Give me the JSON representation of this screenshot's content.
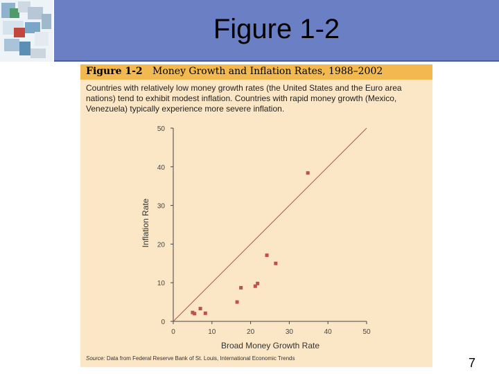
{
  "slide": {
    "title": "Figure 1-2",
    "page_number": "7"
  },
  "figure": {
    "label": "Figure 1-2",
    "heading": "Money Growth and Inflation Rates, 1988–2002",
    "caption": "Countries with relatively low money growth rates (the United States and the Euro area nations) tend to exhibit modest inflation. Countries with rapid money growth (Mexico, Venezuela) typically experience more severe inflation.",
    "source_label": "Source:",
    "source_text": "Data from Federal Reserve Bank of St. Louis, International Economic Trends",
    "panel_color": "#fbe6c6",
    "header_color": "#f1b94f",
    "mark_color": "#c0504d"
  },
  "chart_data": {
    "type": "scatter",
    "xlabel": "Broad Money Growth Rate",
    "ylabel": "Inflation Rate",
    "xlim": [
      0,
      50
    ],
    "ylim": [
      0,
      50
    ],
    "xticks": [
      "0",
      "10",
      "20",
      "30",
      "40",
      "50"
    ],
    "yticks": [
      "0",
      "10",
      "20",
      "30",
      "40",
      "50"
    ],
    "reference_line": {
      "from": [
        0,
        0
      ],
      "to": [
        50,
        50
      ]
    },
    "grid": false,
    "points": [
      {
        "x": 5,
        "y": 2.3
      },
      {
        "x": 5.5,
        "y": 2
      },
      {
        "x": 7,
        "y": 3.3
      },
      {
        "x": 8.3,
        "y": 2.1
      },
      {
        "x": 16.5,
        "y": 5
      },
      {
        "x": 17.5,
        "y": 8.7
      },
      {
        "x": 21.2,
        "y": 9.1
      },
      {
        "x": 21.8,
        "y": 9.8
      },
      {
        "x": 24.2,
        "y": 17.1
      },
      {
        "x": 26.5,
        "y": 15
      },
      {
        "x": 34.8,
        "y": 38.4
      }
    ]
  }
}
